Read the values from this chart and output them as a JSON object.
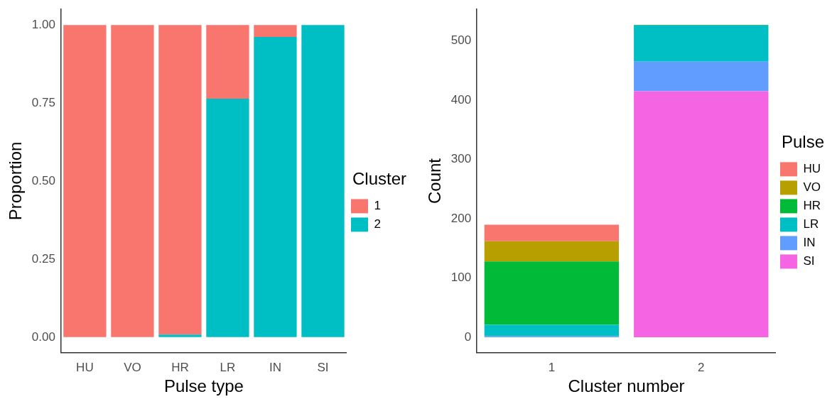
{
  "chart_data": [
    {
      "type": "bar",
      "stacked": true,
      "categories": [
        "HU",
        "VO",
        "HR",
        "LR",
        "IN",
        "SI"
      ],
      "xlabel": "Pulse type",
      "ylabel": "Proportion",
      "legend_title": "Cluster",
      "legend": "right",
      "ylim": [
        -0.05,
        1.05
      ],
      "yticks": [
        {
          "value": 0,
          "label": "0.00"
        },
        {
          "value": 0.25,
          "label": "0.25"
        },
        {
          "value": 0.5,
          "label": "0.50"
        },
        {
          "value": 0.75,
          "label": "0.75"
        },
        {
          "value": 1,
          "label": "1.00"
        }
      ],
      "series": [
        {
          "name": "2",
          "color": "#00bfc4",
          "values": [
            0,
            0,
            0.008,
            0.764,
            0.962,
            1
          ]
        },
        {
          "name": "1",
          "color": "#f8766d",
          "values": [
            1,
            1,
            0.992,
            0.236,
            0.038,
            0
          ]
        }
      ]
    },
    {
      "type": "bar",
      "stacked": true,
      "categories": [
        "1",
        "2"
      ],
      "xlabel": "Cluster number",
      "ylabel": "Count",
      "legend_title": "Pulse",
      "legend": "right",
      "ylim": [
        -26,
        553
      ],
      "yticks": [
        0,
        100,
        200,
        300,
        400,
        500
      ],
      "series": [
        {
          "name": "SI",
          "color": "#f564e3",
          "values": [
            0,
            415
          ]
        },
        {
          "name": "IN",
          "color": "#619cff",
          "values": [
            2,
            50
          ]
        },
        {
          "name": "LR",
          "color": "#00bfc4",
          "values": [
            19,
            61
          ]
        },
        {
          "name": "HR",
          "color": "#00ba38",
          "values": [
            107,
            1
          ]
        },
        {
          "name": "VO",
          "color": "#b79f00",
          "values": [
            34,
            0
          ]
        },
        {
          "name": "HU",
          "color": "#f8766d",
          "values": [
            28,
            0
          ]
        }
      ]
    }
  ]
}
